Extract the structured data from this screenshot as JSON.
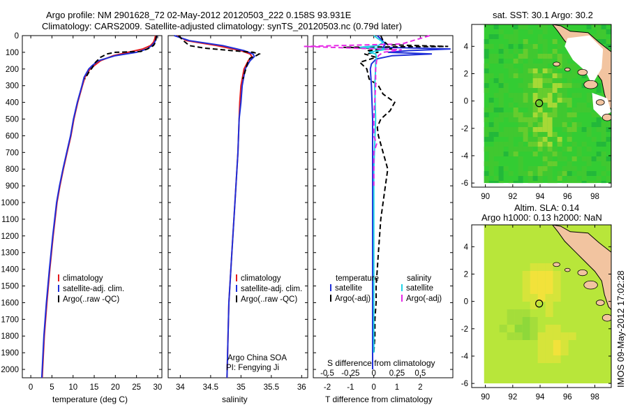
{
  "header": {
    "line1": "Argo profile: NM 2901628_72 02-May-2012 20120503_222 0.158S 93.931E",
    "line2": "Climatology: CARS2009. Satellite-adjusted climatology: synTS_20120503.nc (0.79d later)"
  },
  "colors": {
    "climatology": "#e41a1c",
    "satellite": "#1f2fd8",
    "argo": "#000000",
    "sal_satellite": "#22d3e6",
    "sal_argo": "#e629e6",
    "ocean": "#33cc33",
    "land": "#f2c4a0"
  },
  "chart_data": [
    {
      "type": "line",
      "xlabel": "temperature (deg C)",
      "xlim": [
        -2,
        31
      ],
      "xticks": [
        "0",
        "5",
        "10",
        "15",
        "20",
        "25",
        "30"
      ],
      "ylim": [
        0,
        2050
      ],
      "yticks": [
        "0",
        "100",
        "200",
        "300",
        "400",
        "500",
        "600",
        "700",
        "800",
        "900",
        "1000",
        "1100",
        "1200",
        "1300",
        "1400",
        "1500",
        "1600",
        "1700",
        "1800",
        "1900",
        "2000"
      ],
      "legend": [
        "climatology",
        "satellite-adj. clim.",
        "Argo(..raw -QC)"
      ],
      "series": [
        {
          "key": "climatology",
          "depth": [
            0,
            20,
            40,
            60,
            80,
            100,
            120,
            150,
            180,
            200,
            250,
            300,
            400,
            500,
            600,
            700,
            800,
            900,
            1000,
            1200,
            1400,
            1600,
            1800,
            2000,
            2050
          ],
          "values": [
            29.5,
            29.3,
            29.0,
            28.3,
            26.5,
            23.0,
            19.5,
            16.5,
            15.0,
            14.0,
            12.8,
            12.2,
            11.1,
            10.2,
            9.5,
            8.6,
            7.7,
            6.9,
            6.2,
            5.3,
            4.5,
            3.8,
            3.2,
            2.8,
            2.7
          ]
        },
        {
          "key": "satellite",
          "depth": [
            0,
            20,
            40,
            60,
            80,
            100,
            120,
            150,
            180,
            200,
            250,
            300,
            400,
            500,
            600,
            700,
            800,
            900,
            1000,
            1200,
            1400,
            1600,
            1800,
            2000,
            2050
          ],
          "values": [
            29.8,
            29.6,
            29.3,
            28.6,
            27.5,
            25.0,
            20.0,
            16.0,
            14.5,
            13.7,
            12.6,
            12.1,
            11.0,
            10.1,
            9.4,
            8.5,
            7.6,
            6.8,
            6.1,
            5.2,
            4.4,
            3.7,
            3.1,
            2.7,
            2.6
          ]
        },
        {
          "key": "argo",
          "depth": [
            0,
            20,
            40,
            60,
            80,
            95,
            100,
            110,
            130,
            160,
            190,
            220,
            260
          ],
          "values": [
            29.7,
            29.6,
            29.5,
            29.0,
            27.6,
            26.0,
            20.0,
            18.0,
            16.5,
            15.3,
            14.6,
            13.7,
            12.8
          ]
        }
      ]
    },
    {
      "type": "line",
      "xlabel": "salinity",
      "xlim": [
        33.8,
        36.1
      ],
      "xticks": [
        "34",
        "34.5",
        "35",
        "35.5",
        "36"
      ],
      "ylim": [
        0,
        2050
      ],
      "legend": [
        "climatology",
        "satellite-adj. clim.",
        "Argo(..raw -QC)"
      ],
      "annotation": [
        "Argo China SOA",
        "PI: Fengying Ji"
      ],
      "series": [
        {
          "key": "climatology",
          "depth": [
            0,
            30,
            60,
            90,
            110,
            125,
            150,
            200,
            300,
            400,
            500,
            700,
            1000,
            1300,
            1600,
            1900,
            2050
          ],
          "values": [
            33.95,
            34.1,
            34.6,
            35.0,
            35.15,
            35.18,
            35.12,
            35.05,
            35.0,
            34.98,
            34.97,
            34.95,
            34.9,
            34.85,
            34.8,
            34.78,
            34.77
          ]
        },
        {
          "key": "satellite",
          "depth": [
            0,
            30,
            60,
            90,
            110,
            125,
            150,
            200,
            300,
            400,
            500,
            700,
            1000,
            1300,
            1600,
            1900,
            2050
          ],
          "values": [
            33.9,
            34.15,
            34.7,
            35.05,
            35.2,
            35.22,
            35.15,
            35.07,
            35.02,
            35.0,
            34.97,
            34.95,
            34.9,
            34.85,
            34.8,
            34.78,
            34.77
          ]
        },
        {
          "key": "argo",
          "depth": [
            0,
            30,
            60,
            75,
            90,
            100,
            110,
            120,
            135,
            150,
            200,
            260
          ],
          "values": [
            33.97,
            34.05,
            34.15,
            34.4,
            34.85,
            35.2,
            35.3,
            35.25,
            35.15,
            35.12,
            35.08,
            35.03
          ]
        }
      ]
    },
    {
      "type": "line",
      "xlabel": "T difference from climatology",
      "xlabel2": "S difference from climatology",
      "xlim": [
        -2.6,
        3.4
      ],
      "xticks": [
        "-2",
        "-1",
        "0",
        "1",
        "2"
      ],
      "xticks2": [
        "-0.5",
        "-0.25",
        "0",
        "0.25",
        "0.5"
      ],
      "ylim": [
        0,
        2050
      ],
      "legend": {
        "temperature": "temperature",
        "salinity": "salinity",
        "t_sat": "satellite",
        "t_argo": "Argo(-adj)",
        "s_sat": "satellite",
        "s_argo": "Argo(-adj)"
      },
      "series": [
        {
          "key": "t_satellite",
          "depth": [
            0,
            20,
            50,
            70,
            80,
            90,
            100,
            110,
            120,
            140,
            170,
            200,
            300,
            500,
            1000,
            1500,
            2000
          ],
          "values": [
            0.15,
            0.3,
            0.5,
            0.4,
            3.3,
            1.5,
            0.6,
            2.5,
            0.8,
            0.1,
            -0.1,
            -0.15,
            -0.1,
            -0.05,
            -0.05,
            -0.05,
            -0.05
          ]
        },
        {
          "key": "t_argo",
          "depth": [
            0,
            30,
            55,
            65,
            70,
            80,
            90,
            100,
            110,
            130,
            160,
            200,
            260,
            300,
            350,
            400,
            450,
            500,
            550,
            600,
            700,
            800,
            900,
            1000,
            1100,
            1200,
            1300,
            1400,
            1500,
            1600,
            1700,
            1800,
            1900
          ],
          "values": [
            0.3,
            0.4,
            0.6,
            3.2,
            -1.3,
            0.8,
            -0.3,
            0.2,
            -0.4,
            0.1,
            -0.6,
            -0.3,
            -0.2,
            0.2,
            0.4,
            0.9,
            0.7,
            0.3,
            0.15,
            0.2,
            0.4,
            0.6,
            0.5,
            0.4,
            0.3,
            0.25,
            0.2,
            0.15,
            0.1,
            0.1,
            0.05,
            0.05,
            0.0
          ]
        },
        {
          "key": "s_satellite",
          "depth": [
            0,
            40,
            60,
            70,
            80,
            90,
            100,
            110,
            130,
            160,
            200,
            300,
            500,
            800,
            1000,
            1300,
            1600,
            1900
          ],
          "values": [
            0.0,
            0.1,
            0.05,
            -0.15,
            0.15,
            0.05,
            -0.05,
            0.02,
            0.03,
            0.02,
            0.02,
            0.01,
            0.02,
            0.0,
            0.0,
            0.0,
            0.0,
            0.0
          ]
        },
        {
          "key": "s_argo",
          "depth": [
            0,
            50,
            65,
            75,
            85,
            100,
            120,
            150,
            200,
            300,
            500,
            600,
            650,
            700,
            900
          ],
          "values": [
            0.6,
            0.3,
            -0.75,
            -0.2,
            0.3,
            0.1,
            0.05,
            0.03,
            0.02,
            0.02,
            0.0,
            0.0,
            0.03,
            0.0,
            0.0
          ]
        }
      ]
    },
    {
      "type": "heatmap",
      "title": "sat. SST: 30.1  Argo: 30.2",
      "xticks": [
        "90",
        "92",
        "94",
        "96",
        "98"
      ],
      "yticks": [
        "4",
        "2",
        "0",
        "-2",
        "-4",
        "-6"
      ],
      "marker": [
        93.931,
        -0.158
      ],
      "xlim": [
        89,
        99.2
      ],
      "ylim": [
        -6.3,
        5.6
      ]
    },
    {
      "type": "heatmap",
      "title1": "Altim. SLA: 0.14",
      "title2": "Argo h1000: 0.13  h2000: NaN",
      "xticks": [
        "90",
        "92",
        "94",
        "96",
        "98"
      ],
      "yticks": [
        "4",
        "2",
        "0",
        "-2",
        "-4",
        "-6"
      ],
      "marker": [
        93.931,
        -0.158
      ],
      "xlim": [
        89,
        99.2
      ],
      "ylim": [
        -6.3,
        5.6
      ]
    }
  ],
  "sidebar_stamp": "IMOS 09-May-2012 17:02:28"
}
